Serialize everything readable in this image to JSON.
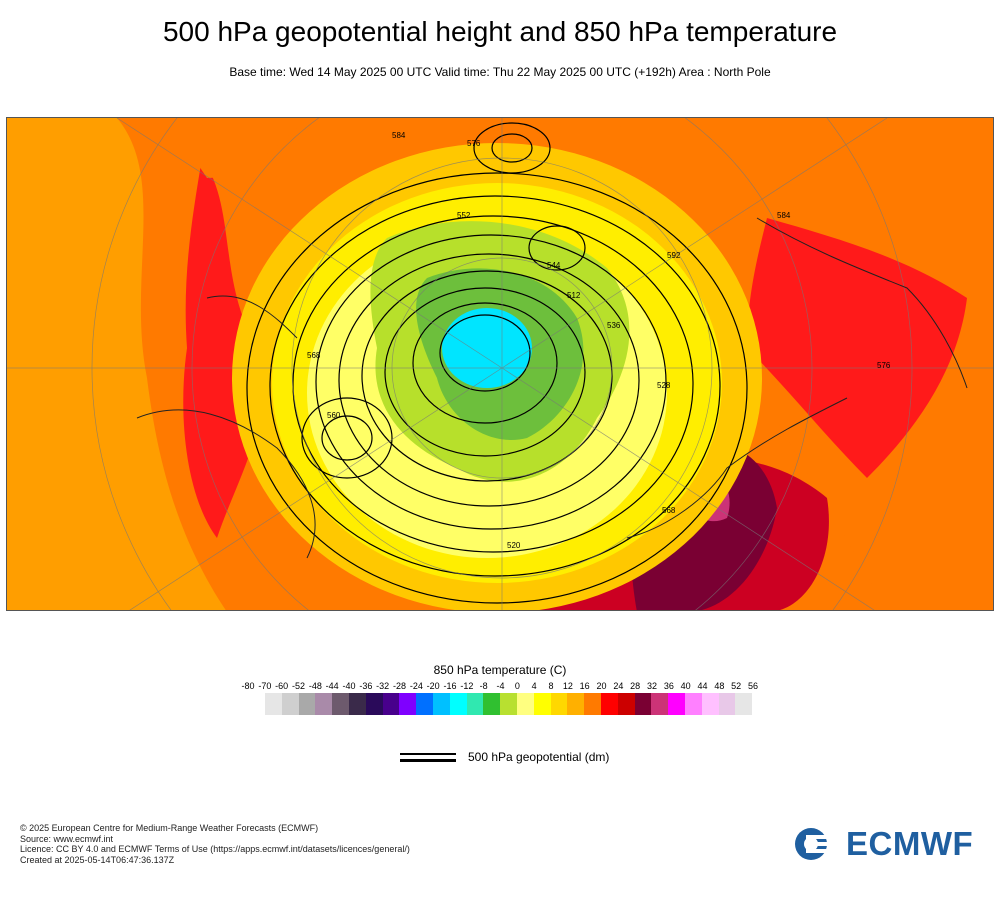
{
  "header": {
    "title": "500 hPa geopotential height and 850 hPa temperature",
    "subtitle": "Base time: Wed 14 May 2025 00 UTC Valid time: Thu 22 May 2025 00 UTC (+192h) Area : North Pole"
  },
  "map": {
    "projection": "polar stereographic",
    "area": "North Pole",
    "contour_labels": [
      "584",
      "576",
      "568",
      "560",
      "552",
      "544",
      "536",
      "528",
      "520",
      "512",
      "592",
      "584",
      "576",
      "568"
    ],
    "colors": {
      "ocean_warm": "#ff7a00",
      "warm": "#ff9e00",
      "hot": "#ff1a1a",
      "very_hot": "#cc0022",
      "extreme": "#7a0033",
      "mild": "#ffc800",
      "cool": "#ffee00",
      "cooler": "#ffff66",
      "cold": "#b7e02b",
      "colder": "#6dbf3c",
      "coldest": "#00e5ff",
      "contour": "#000000"
    }
  },
  "legend": {
    "title": "850 hPa temperature (C)",
    "ticks": [
      "-80",
      "-70",
      "-60",
      "-52",
      "-48",
      "-44",
      "-40",
      "-36",
      "-32",
      "-28",
      "-24",
      "-20",
      "-16",
      "-12",
      "-8",
      "-4",
      "0",
      "4",
      "8",
      "12",
      "16",
      "20",
      "24",
      "28",
      "32",
      "36",
      "40",
      "44",
      "48",
      "52",
      "56"
    ],
    "colors": [
      "#e6e6e6",
      "#cfcfcf",
      "#a9a9a9",
      "#a98aa9",
      "#6d5a6d",
      "#3a2a4a",
      "#2a0a5a",
      "#48008c",
      "#7f00ff",
      "#0070ff",
      "#00c0ff",
      "#00ffff",
      "#30e8b0",
      "#30c030",
      "#b8e030",
      "#ffff80",
      "#ffff00",
      "#ffd800",
      "#ffb000",
      "#ff7a00",
      "#ff0000",
      "#cc0000",
      "#7a0033",
      "#cc3377",
      "#ff00ff",
      "#ff80ff",
      "#ffc0ff",
      "#e8c8e8",
      "#e6e6e6"
    ],
    "geopotential_label": "500 hPa geopotential (dm)"
  },
  "footer": {
    "copyright": "© 2025 European Centre for Medium-Range Weather Forecasts (ECMWF)",
    "source": "Source: www.ecmwf.int",
    "licence": "Licence: CC BY 4.0 and ECMWF Terms of Use (https://apps.ecmwf.int/datasets/licences/general/)",
    "created": "Created at 2025-05-14T06:47:36.137Z",
    "logo_text": "ECMWF",
    "logo_color": "#1f5fa0"
  }
}
